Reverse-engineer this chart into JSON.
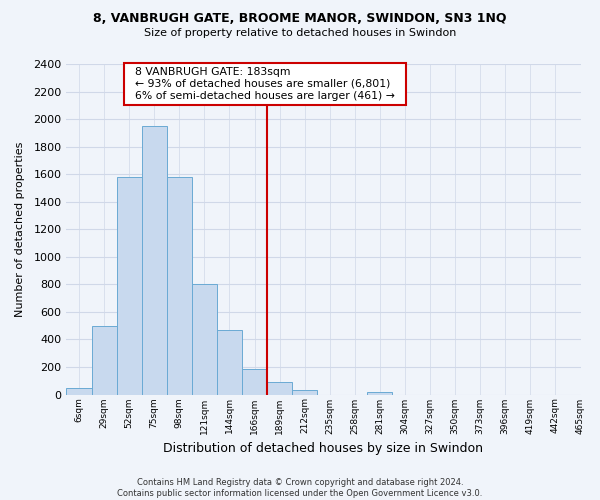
{
  "title": "8, VANBRUGH GATE, BROOME MANOR, SWINDON, SN3 1NQ",
  "subtitle": "Size of property relative to detached houses in Swindon",
  "xlabel": "Distribution of detached houses by size in Swindon",
  "ylabel": "Number of detached properties",
  "bin_labels": [
    "6sqm",
    "29sqm",
    "52sqm",
    "75sqm",
    "98sqm",
    "121sqm",
    "144sqm",
    "166sqm",
    "189sqm",
    "212sqm",
    "235sqm",
    "258sqm",
    "281sqm",
    "304sqm",
    "327sqm",
    "350sqm",
    "373sqm",
    "396sqm",
    "419sqm",
    "442sqm",
    "465sqm"
  ],
  "bar_heights": [
    50,
    500,
    1580,
    1950,
    1580,
    800,
    470,
    185,
    90,
    30,
    0,
    0,
    20,
    0,
    0,
    0,
    0,
    0,
    0,
    0
  ],
  "bar_color": "#c8d9ee",
  "bar_edge_color": "#6aaad4",
  "annotation_title": "8 VANBRUGH GATE: 183sqm",
  "annotation_line1": "← 93% of detached houses are smaller (6,801)",
  "annotation_line2": "6% of semi-detached houses are larger (461) →",
  "annotation_box_color": "#ffffff",
  "annotation_box_edge": "#cc0000",
  "highlight_line_bin": 8,
  "ylim": [
    0,
    2400
  ],
  "yticks": [
    0,
    200,
    400,
    600,
    800,
    1000,
    1200,
    1400,
    1600,
    1800,
    2000,
    2200,
    2400
  ],
  "footer_line1": "Contains HM Land Registry data © Crown copyright and database right 2024.",
  "footer_line2": "Contains public sector information licensed under the Open Government Licence v3.0.",
  "bg_color": "#f0f4fa",
  "plot_bg_color": "#f0f4fa",
  "grid_color": "#d0d8e8"
}
